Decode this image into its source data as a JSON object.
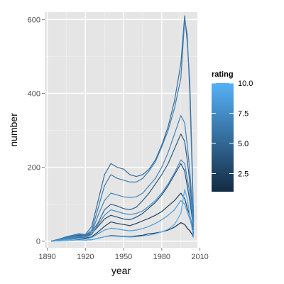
{
  "chart_data": {
    "type": "line",
    "title": "",
    "xlabel": "year",
    "ylabel": "number",
    "xlim": [
      1888,
      2008
    ],
    "ylim": [
      -18,
      620
    ],
    "x_ticks": [
      1890,
      1920,
      1950,
      1980,
      2010
    ],
    "y_ticks": [
      0,
      200,
      400,
      600
    ],
    "grid": true,
    "legend": {
      "title": "rating",
      "placement": "right",
      "type": "colorbar",
      "ticks": [
        2.5,
        5.0,
        7.5,
        10.0
      ],
      "tick_labels": [
        "2.5",
        "5.0",
        "7.5",
        "10.0"
      ],
      "range": [
        1,
        10
      ],
      "low_color": "#132B43",
      "high_color": "#56B1F7"
    },
    "x": [
      1893,
      1900,
      1905,
      1910,
      1915,
      1920,
      1925,
      1930,
      1935,
      1940,
      1945,
      1950,
      1955,
      1960,
      1965,
      1970,
      1975,
      1980,
      1985,
      1990,
      1995,
      1998,
      2000,
      2002,
      2004,
      2005
    ],
    "series": [
      {
        "rating": 1.5,
        "values": [
          0,
          1,
          2,
          3,
          4,
          3,
          4,
          8,
          12,
          15,
          14,
          13,
          12,
          14,
          16,
          20,
          22,
          25,
          30,
          38,
          50,
          45,
          35,
          28,
          18,
          10
        ]
      },
      {
        "rating": 2.5,
        "values": [
          0,
          3,
          6,
          8,
          10,
          8,
          12,
          25,
          40,
          52,
          48,
          45,
          42,
          48,
          55,
          62,
          70,
          80,
          95,
          110,
          130,
          115,
          90,
          70,
          40,
          20
        ]
      },
      {
        "rating": 3.5,
        "values": [
          0,
          4,
          8,
          10,
          12,
          12,
          20,
          40,
          60,
          70,
          65,
          60,
          58,
          65,
          75,
          90,
          105,
          125,
          150,
          180,
          210,
          190,
          150,
          110,
          60,
          30
        ]
      },
      {
        "rating": 4.5,
        "values": [
          0,
          5,
          10,
          14,
          16,
          15,
          25,
          50,
          85,
          100,
          95,
          88,
          85,
          92,
          110,
          130,
          155,
          180,
          210,
          250,
          290,
          270,
          220,
          160,
          90,
          40
        ]
      },
      {
        "rating": 5.5,
        "values": [
          0,
          6,
          12,
          16,
          20,
          18,
          40,
          110,
          180,
          210,
          200,
          195,
          180,
          175,
          180,
          195,
          220,
          260,
          310,
          380,
          480,
          610,
          540,
          430,
          200,
          60
        ]
      },
      {
        "rating": 6.5,
        "values": [
          0,
          5,
          10,
          14,
          18,
          16,
          30,
          90,
          150,
          180,
          170,
          165,
          160,
          160,
          170,
          190,
          215,
          255,
          300,
          360,
          440,
          600,
          560,
          400,
          180,
          50
        ]
      },
      {
        "rating": 7.0,
        "values": [
          0,
          4,
          8,
          12,
          14,
          12,
          25,
          70,
          110,
          130,
          125,
          120,
          118,
          120,
          130,
          150,
          170,
          200,
          240,
          290,
          340,
          320,
          260,
          190,
          100,
          40
        ]
      },
      {
        "rating": 7.5,
        "values": [
          0,
          3,
          6,
          9,
          11,
          10,
          18,
          45,
          70,
          85,
          80,
          75,
          72,
          75,
          82,
          95,
          110,
          130,
          155,
          185,
          220,
          210,
          170,
          130,
          70,
          30
        ]
      },
      {
        "rating": 8.5,
        "values": [
          0,
          2,
          4,
          6,
          7,
          6,
          10,
          20,
          30,
          35,
          33,
          30,
          28,
          30,
          34,
          40,
          48,
          58,
          70,
          85,
          110,
          100,
          80,
          60,
          35,
          15
        ]
      },
      {
        "rating": 9.5,
        "values": [
          0,
          1,
          2,
          3,
          3,
          3,
          4,
          8,
          12,
          14,
          13,
          12,
          11,
          12,
          14,
          16,
          20,
          25,
          32,
          45,
          75,
          140,
          115,
          70,
          30,
          10
        ]
      }
    ]
  }
}
